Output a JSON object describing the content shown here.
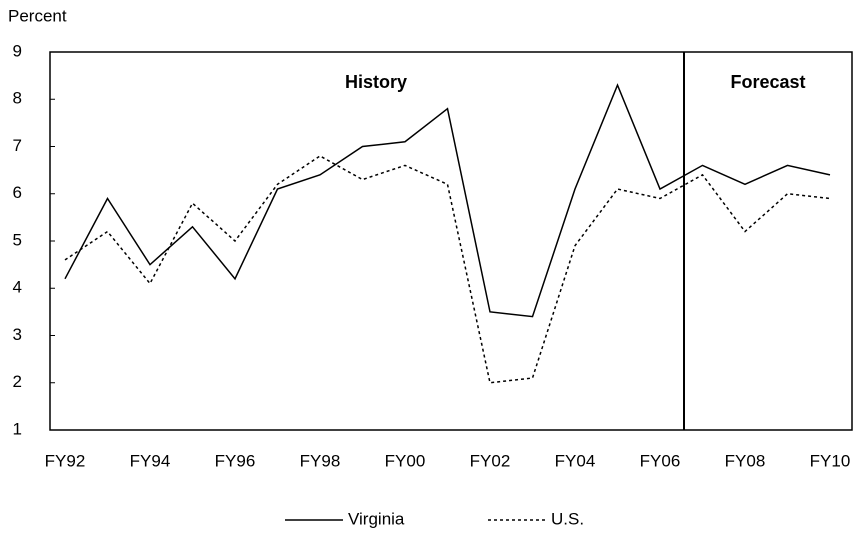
{
  "chart_data": {
    "type": "line",
    "y_axis_label": "Percent",
    "annotations": [
      "History",
      "Forecast"
    ],
    "categories": [
      "FY92",
      null,
      "FY94",
      null,
      "FY96",
      null,
      "FY98",
      null,
      "FY00",
      null,
      "FY02",
      null,
      "FY04",
      null,
      "FY06",
      null,
      "FY08",
      null,
      "FY10"
    ],
    "series": [
      {
        "name": "Virginia",
        "color": "#000000",
        "dash": "solid",
        "values": [
          4.2,
          5.9,
          4.5,
          5.3,
          4.2,
          6.1,
          6.4,
          7.0,
          7.1,
          7.8,
          3.5,
          3.4,
          6.1,
          8.3,
          6.1,
          6.6,
          6.2,
          6.6,
          6.4
        ]
      },
      {
        "name": "U.S.",
        "color": "#000000",
        "dash": "dotted",
        "values": [
          4.6,
          5.2,
          4.1,
          5.8,
          5.0,
          6.2,
          6.8,
          6.3,
          6.6,
          6.2,
          2.0,
          2.1,
          4.9,
          6.1,
          5.9,
          6.4,
          5.2,
          6.0,
          5.9
        ]
      }
    ],
    "ylim": [
      1,
      9
    ],
    "yticks": [
      1,
      2,
      3,
      4,
      5,
      6,
      7,
      8,
      9
    ],
    "grid": false
  }
}
